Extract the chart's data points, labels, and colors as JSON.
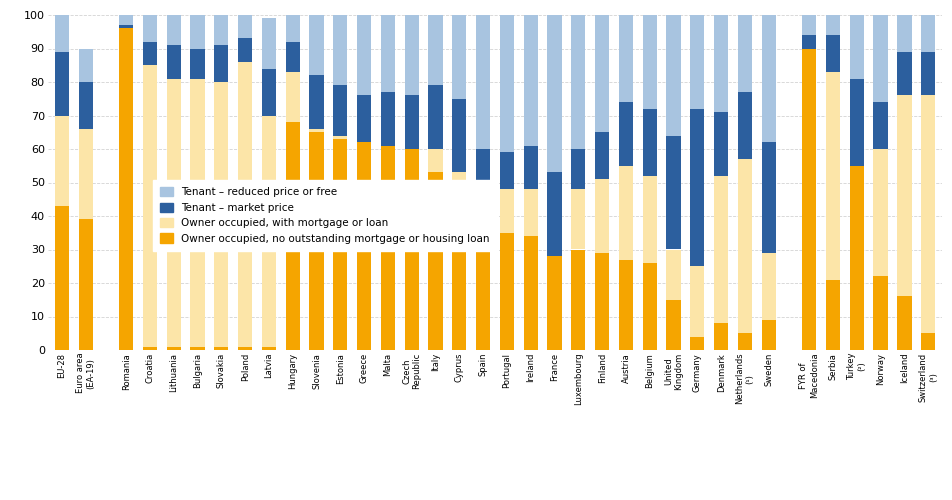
{
  "categories": [
    "EU-28",
    "Euro area\n(EA-19)",
    "Romania",
    "Croatia",
    "Lithuania",
    "Bulgaria",
    "Slovakia",
    "Poland",
    "Latvia",
    "Hungary",
    "Slovenia",
    "Estonia",
    "Greece",
    "Malta",
    "Czech\nRepublic",
    "Italy",
    "Cyprus",
    "Spain",
    "Portugal",
    "Ireland",
    "France",
    "Luxembourg",
    "Finland",
    "Austria",
    "Belgium",
    "United\nKingdom",
    "Germany",
    "Denmark",
    "Netherlands\n(¹)",
    "Sweden",
    "FYR of\nMacedonia",
    "Serbia",
    "Turkey\n(²)",
    "Norway",
    "Iceland",
    "Switzerland\n(³)"
  ],
  "owner_no_mortgage": [
    43,
    39,
    96,
    1,
    1,
    1,
    1,
    1,
    1,
    68,
    65,
    63,
    62,
    61,
    60,
    53,
    47,
    33,
    35,
    34,
    28,
    30,
    29,
    27,
    26,
    15,
    4,
    8,
    5,
    9,
    90,
    21,
    55,
    22,
    16,
    5
  ],
  "owner_with_mortgage": [
    27,
    27,
    0,
    84,
    80,
    80,
    79,
    85,
    69,
    15,
    1,
    1,
    0,
    0,
    0,
    7,
    6,
    16,
    13,
    14,
    0,
    18,
    22,
    28,
    26,
    15,
    21,
    44,
    52,
    20,
    0,
    62,
    0,
    38,
    60,
    71
  ],
  "tenant_market": [
    19,
    14,
    1,
    7,
    10,
    9,
    11,
    7,
    14,
    9,
    16,
    15,
    14,
    16,
    16,
    19,
    22,
    11,
    11,
    13,
    25,
    12,
    14,
    19,
    20,
    34,
    47,
    19,
    20,
    33,
    4,
    11,
    26,
    14,
    13,
    13
  ],
  "tenant_reduced": [
    11,
    10,
    3,
    8,
    9,
    10,
    9,
    7,
    15,
    8,
    18,
    21,
    24,
    23,
    24,
    21,
    25,
    40,
    41,
    39,
    47,
    40,
    35,
    26,
    28,
    36,
    28,
    29,
    23,
    38,
    6,
    6,
    19,
    26,
    11,
    11
  ],
  "colors": {
    "owner_no_mortgage": "#f5a500",
    "owner_with_mortgage": "#fce5a8",
    "tenant_market": "#2c5f9e",
    "tenant_reduced": "#a8c4e0"
  },
  "legend_labels": [
    "Tenant – reduced price or free",
    "Tenant – market price",
    "Owner occupied, with mortgage or loan",
    "Owner occupied, no outstanding mortgage or housing loan"
  ],
  "ylim": [
    0,
    100
  ],
  "yticks": [
    0,
    10,
    20,
    30,
    40,
    50,
    60,
    70,
    80,
    90,
    100
  ]
}
